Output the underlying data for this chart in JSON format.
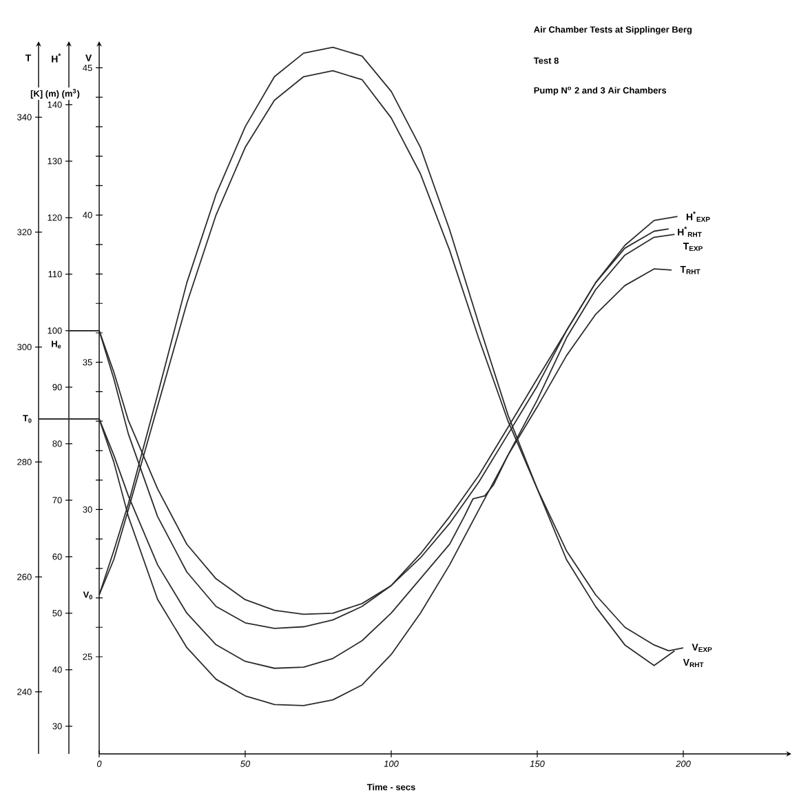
{
  "chart_data": {
    "type": "line",
    "title": "Air Chamber Tests at Sipplinger Berg",
    "subtitle": "Test 8",
    "xlabel": "Time - secs",
    "ylabel": "V",
    "y2label": "H$^{*}$",
    "y3label": "T",
    "annotations": [
      "Pump N$^{o}$ 2 and 3 Air Chambers",
      "[K] (m) (m$^{3}$)",
      "H$_{e}$",
      "T$_{0}$",
      "V$_{0}$"
    ],
    "xlim": [
      0,
      237
    ],
    "xticks": [
      0,
      50,
      100,
      150,
      200
    ],
    "ylim": [
      21.7,
      45.9
    ],
    "yticks": [
      25,
      {
        "value": 26,
        "label": null
      },
      {
        "value": 27,
        "label": null
      },
      {
        "value": 28,
        "label": null
      },
      {
        "value": 29,
        "label": null
      },
      30,
      {
        "value": 31,
        "label": null
      },
      {
        "value": 32,
        "label": null
      },
      {
        "value": 33,
        "label": null
      },
      {
        "value": 34,
        "label": null
      },
      35,
      {
        "value": 36,
        "label": null
      },
      {
        "value": 37,
        "label": null
      },
      {
        "value": 38,
        "label": null
      },
      {
        "value": 39,
        "label": null
      },
      40,
      {
        "value": 41,
        "label": null
      },
      {
        "value": 42,
        "label": null
      },
      {
        "value": 43,
        "label": null
      },
      {
        "value": 44,
        "label": null
      },
      45
    ],
    "y2lim": [
      25.1,
      151.2
    ],
    "y2ticks": [
      30,
      40,
      50,
      60,
      70,
      80,
      90,
      100,
      110,
      120,
      130,
      140
    ],
    "y3lim": [
      229.2,
      353.2
    ],
    "y3ticks": [
      240,
      260,
      280,
      300,
      320,
      340
    ],
    "line_style": "solid",
    "series": [
      {
        "name": "V$_{RHT}$",
        "color": "#2b2b2b",
        "x": [
          0,
          5,
          10,
          20,
          30,
          40,
          50,
          60,
          70,
          80,
          90,
          100,
          110,
          120,
          130,
          140,
          150,
          160,
          170,
          180,
          190,
          197
        ],
        "values": [
          27.1,
          28.6,
          30.2,
          33.9,
          37.7,
          40.7,
          43.0,
          44.7,
          45.5,
          45.7,
          45.4,
          44.2,
          42.3,
          39.5,
          36.3,
          33.2,
          30.7,
          28.3,
          26.7,
          25.4,
          24.7,
          25.2
        ]
      },
      {
        "name": "V$_{EXP}$",
        "color": "#2b2b2b",
        "x": [
          0,
          5,
          10,
          20,
          30,
          40,
          50,
          60,
          70,
          80,
          90,
          100,
          110,
          120,
          130,
          140,
          150,
          160,
          170,
          180,
          190,
          195,
          200
        ],
        "values": [
          27.1,
          28.3,
          30.0,
          33.5,
          37.0,
          40.0,
          42.3,
          43.9,
          44.7,
          44.9,
          44.6,
          43.3,
          41.4,
          38.8,
          35.8,
          33.0,
          30.7,
          28.6,
          27.1,
          26.0,
          25.4,
          25.2,
          25.3
        ]
      },
      {
        "name": "H$^{*}$$_{EXP}$",
        "color": "#2b2b2b",
        "axis": "y2",
        "x": [
          0,
          5,
          10,
          20,
          30,
          40,
          50,
          60,
          70,
          80,
          90,
          100,
          110,
          120,
          130,
          140,
          150,
          160,
          170,
          180,
          190,
          198
        ],
        "values": [
          100,
          92.7,
          84.1,
          72.0,
          62.2,
          56.1,
          52.4,
          50.5,
          49.8,
          50.0,
          51.7,
          54.9,
          59.8,
          65.9,
          73.2,
          81.7,
          90.2,
          100,
          108.5,
          115.1,
          119.5,
          120.2
        ]
      },
      {
        "name": "H$^{*}$$_{RHT}$",
        "color": "#2b2b2b",
        "axis": "y2",
        "x": [
          0,
          5,
          10,
          20,
          30,
          40,
          50,
          60,
          70,
          80,
          90,
          100,
          110,
          120,
          130,
          140,
          150,
          160,
          170,
          180,
          190,
          195
        ],
        "values": [
          100,
          91.5,
          81.7,
          67.1,
          57.3,
          51.2,
          48.3,
          47.3,
          47.6,
          48.8,
          51.2,
          54.9,
          60.5,
          67.1,
          74.4,
          82.9,
          91.5,
          100,
          108.5,
          114.6,
          117.6,
          118.0
        ]
      },
      {
        "name": "T$_{EXP}$",
        "color": "#2b2b2b",
        "axis": "y3",
        "x": [
          0,
          5,
          10,
          20,
          30,
          40,
          50,
          60,
          70,
          80,
          90,
          100,
          110,
          120,
          125,
          128,
          132,
          135,
          140,
          150,
          160,
          170,
          180,
          190,
          197
        ],
        "values": [
          287.5,
          281.2,
          274.1,
          262.1,
          253.7,
          248.2,
          245.3,
          244.1,
          244.3,
          245.8,
          248.9,
          253.7,
          259.7,
          265.7,
          270.5,
          273.6,
          274.1,
          276.0,
          281.2,
          290.8,
          301.6,
          310.0,
          316.0,
          319.1,
          319.6
        ]
      },
      {
        "name": "T$_{RHT}$",
        "color": "#2b2b2b",
        "axis": "y3",
        "x": [
          0,
          5,
          10,
          20,
          30,
          40,
          50,
          60,
          70,
          80,
          90,
          100,
          110,
          120,
          130,
          140,
          150,
          160,
          170,
          180,
          190,
          196
        ],
        "values": [
          287.5,
          280.0,
          270.5,
          256.1,
          247.7,
          242.2,
          239.3,
          237.8,
          237.6,
          238.6,
          241.2,
          246.5,
          253.7,
          262.1,
          271.7,
          281.2,
          289.6,
          298.5,
          305.7,
          310.7,
          313.6,
          313.4
        ]
      }
    ]
  }
}
